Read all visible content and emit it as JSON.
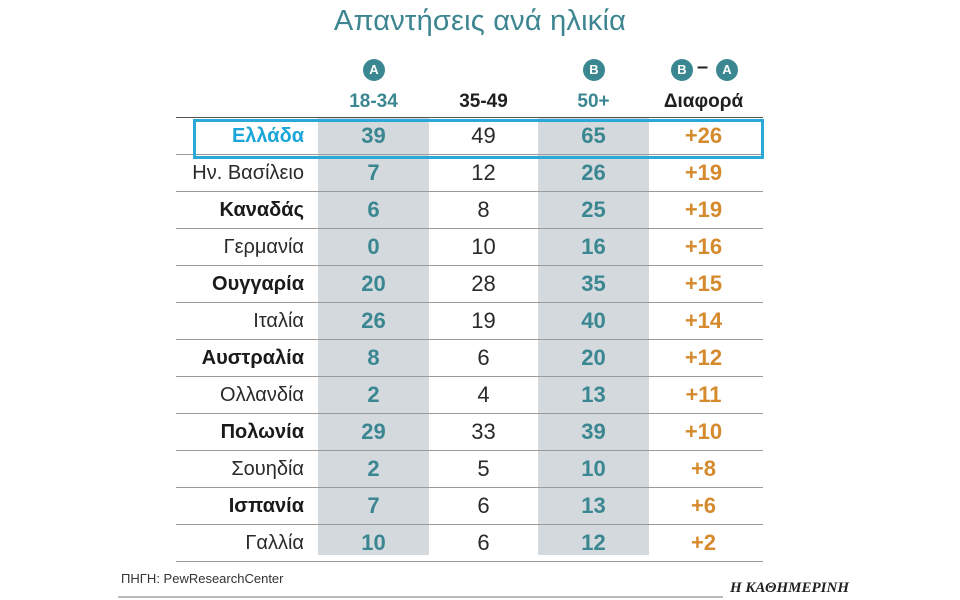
{
  "title": "Απαντήσεις ανά ηλικία",
  "columns": {
    "a_badge": "A",
    "b_badge": "B",
    "diff_badge_left": "B",
    "diff_badge_right": "A",
    "diff_dash": "–",
    "col1": "18-34",
    "col2": "35-49",
    "col3": "50+",
    "col4": "Διαφορά"
  },
  "colors": {
    "teal": "#3b8791",
    "orange": "#d68a2e",
    "highlight": "#2aa9d9",
    "shade": "#d4d9de"
  },
  "chart_data": {
    "type": "table",
    "title": "Απαντήσεις ανά ηλικία",
    "headers": [
      "",
      "18-34",
      "35-49",
      "50+",
      "Διαφορά"
    ],
    "rows": [
      {
        "country": "Ελλάδα",
        "a": "39",
        "m": "49",
        "b": "65",
        "diff": "+26",
        "bold": true,
        "highlight": true
      },
      {
        "country": "Ην. Βασίλειο",
        "a": "7",
        "m": "12",
        "b": "26",
        "diff": "+19",
        "bold": false
      },
      {
        "country": "Καναδάς",
        "a": "6",
        "m": "8",
        "b": "25",
        "diff": "+19",
        "bold": true
      },
      {
        "country": "Γερμανία",
        "a": "0",
        "m": "10",
        "b": "16",
        "diff": "+16",
        "bold": false
      },
      {
        "country": "Ουγγαρία",
        "a": "20",
        "m": "28",
        "b": "35",
        "diff": "+15",
        "bold": true
      },
      {
        "country": "Ιταλία",
        "a": "26",
        "m": "19",
        "b": "40",
        "diff": "+14",
        "bold": false
      },
      {
        "country": "Αυστραλία",
        "a": "8",
        "m": "6",
        "b": "20",
        "diff": "+12",
        "bold": true
      },
      {
        "country": "Ολλανδία",
        "a": "2",
        "m": "4",
        "b": "13",
        "diff": "+11",
        "bold": false
      },
      {
        "country": "Πολωνία",
        "a": "29",
        "m": "33",
        "b": "39",
        "diff": "+10",
        "bold": true
      },
      {
        "country": "Σουηδία",
        "a": "2",
        "m": "5",
        "b": "10",
        "diff": "+8",
        "bold": false
      },
      {
        "country": "Ισπανία",
        "a": "7",
        "m": "6",
        "b": "13",
        "diff": "+6",
        "bold": true
      },
      {
        "country": "Γαλλία",
        "a": "10",
        "m": "6",
        "b": "12",
        "diff": "+2",
        "bold": false
      }
    ]
  },
  "source": "ΠΗΓΗ: PewResearchCenter",
  "brand": "Η ΚΑΘΗΜΕΡΙΝΗ"
}
